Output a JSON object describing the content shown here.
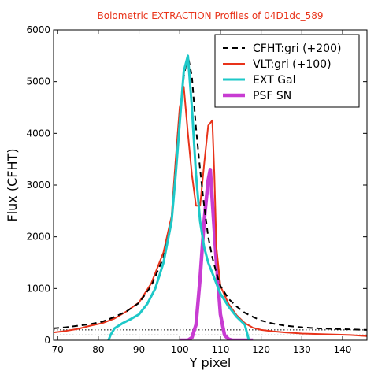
{
  "chart_data": {
    "type": "line",
    "title": "Bolometric EXTRACTION Profiles of 04D1dc_589",
    "title_color": "#e8331a",
    "xlabel": "Y pixel",
    "ylabel": "Flux (CFHT)",
    "xlim": [
      69,
      146
    ],
    "ylim": [
      0,
      6000
    ],
    "xticks": [
      70,
      80,
      90,
      100,
      110,
      120,
      130,
      140
    ],
    "yticks": [
      0,
      1000,
      2000,
      3000,
      4000,
      5000,
      6000
    ],
    "grid": false,
    "legend_position": "top-right",
    "reference_lines": [
      {
        "y": 200,
        "style": "dotted",
        "color": "#000000"
      },
      {
        "y": 100,
        "style": "dotted",
        "color": "#000000"
      }
    ],
    "series": [
      {
        "name": "CFHT:gri (+200)",
        "color": "#000000",
        "style": "dashed",
        "x": [
          69,
          72,
          75,
          78,
          81,
          84,
          87,
          90,
          93,
          96,
          98,
          99,
          100,
          101,
          102,
          103,
          104,
          105,
          106,
          107,
          108,
          109,
          110,
          112,
          114,
          116,
          118,
          120,
          123,
          126,
          130,
          134,
          138,
          142,
          146
        ],
        "y": [
          230,
          250,
          280,
          310,
          360,
          450,
          560,
          720,
          1050,
          1600,
          2300,
          3300,
          4300,
          5100,
          5500,
          5100,
          4100,
          3300,
          2600,
          2000,
          1600,
          1300,
          1050,
          800,
          650,
          530,
          450,
          380,
          320,
          280,
          250,
          230,
          220,
          210,
          200
        ]
      },
      {
        "name": "VLT:gri (+100)",
        "color": "#e8331a",
        "style": "solid",
        "x": [
          69,
          72,
          75,
          78,
          81,
          84,
          87,
          90,
          93,
          96,
          98,
          99,
          100,
          101,
          102,
          103,
          104,
          105,
          106,
          107,
          107.5,
          108,
          108.5,
          109,
          110,
          112,
          114,
          116,
          118,
          120,
          123,
          126,
          130,
          134,
          138,
          142,
          146
        ],
        "y": [
          150,
          180,
          220,
          280,
          330,
          420,
          560,
          730,
          1100,
          1700,
          2400,
          3500,
          4500,
          4900,
          4000,
          3200,
          2600,
          2600,
          3400,
          4150,
          4200,
          4250,
          3200,
          1800,
          1050,
          700,
          480,
          330,
          240,
          200,
          170,
          150,
          130,
          120,
          110,
          100,
          80
        ]
      },
      {
        "name": "EXT Gal",
        "color": "#1ec8c8",
        "style": "solid",
        "x": [
          82.5,
          83,
          84,
          86,
          88,
          90,
          92,
          94,
          96,
          98,
          99,
          100,
          101,
          102,
          103,
          104,
          105,
          106,
          107,
          108,
          110,
          112,
          114,
          116,
          117
        ],
        "y": [
          0,
          100,
          230,
          330,
          410,
          500,
          700,
          1000,
          1500,
          2300,
          3200,
          4200,
          5200,
          5500,
          4500,
          3200,
          2300,
          1800,
          1500,
          1300,
          900,
          650,
          450,
          300,
          0
        ]
      },
      {
        "name": "PSF SN",
        "color": "#c83cd2",
        "style": "solid",
        "x": [
          100,
          102,
          103,
          104,
          105,
          106,
          107,
          107.5,
          108,
          109,
          110,
          111,
          112,
          113,
          114,
          116,
          118
        ],
        "y": [
          0,
          0,
          50,
          300,
          1200,
          2300,
          3100,
          3300,
          2700,
          1500,
          500,
          100,
          20,
          0,
          0,
          0,
          0
        ]
      }
    ]
  }
}
